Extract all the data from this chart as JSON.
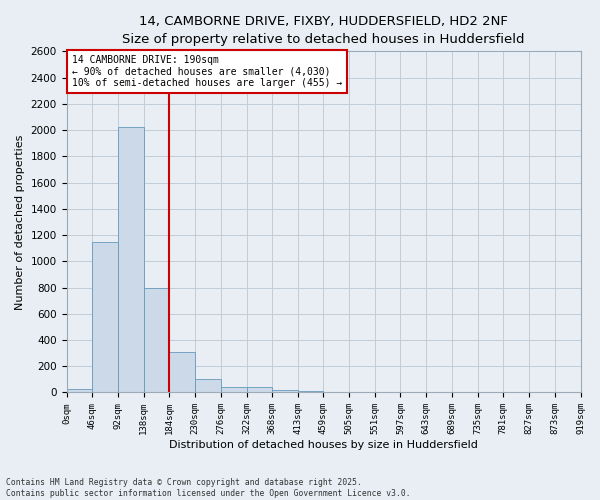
{
  "title_line1": "14, CAMBORNE DRIVE, FIXBY, HUDDERSFIELD, HD2 2NF",
  "title_line2": "Size of property relative to detached houses in Huddersfield",
  "xlabel": "Distribution of detached houses by size in Huddersfield",
  "ylabel": "Number of detached properties",
  "bar_color": "#ccd9e8",
  "bar_edgecolor": "#6699bb",
  "annotation_text": "14 CAMBORNE DRIVE: 190sqm\n← 90% of detached houses are smaller (4,030)\n10% of semi-detached houses are larger (455) →",
  "vline_x": 184,
  "vline_color": "#cc0000",
  "annotation_box_edgecolor": "#cc0000",
  "footnote": "Contains HM Land Registry data © Crown copyright and database right 2025.\nContains public sector information licensed under the Open Government Licence v3.0.",
  "bin_edges": [
    0,
    46,
    92,
    138,
    184,
    230,
    276,
    322,
    368,
    413,
    459,
    505,
    551,
    597,
    643,
    689,
    735,
    781,
    827,
    873,
    919
  ],
  "bin_labels": [
    "0sqm",
    "46sqm",
    "92sqm",
    "138sqm",
    "184sqm",
    "230sqm",
    "276sqm",
    "322sqm",
    "368sqm",
    "413sqm",
    "459sqm",
    "505sqm",
    "551sqm",
    "597sqm",
    "643sqm",
    "689sqm",
    "735sqm",
    "781sqm",
    "827sqm",
    "873sqm",
    "919sqm"
  ],
  "bar_heights": [
    30,
    1150,
    2020,
    795,
    305,
    105,
    45,
    40,
    20,
    10,
    5,
    0,
    0,
    0,
    0,
    0,
    0,
    0,
    0,
    0
  ],
  "ylim": [
    0,
    2600
  ],
  "yticks": [
    0,
    200,
    400,
    600,
    800,
    1000,
    1200,
    1400,
    1600,
    1800,
    2000,
    2200,
    2400,
    2600
  ],
  "grid_color": "#c0ccd8",
  "fig_background_color": "#e8eef4",
  "ax_background_color": "#e8eef4",
  "title_fontsize": 9.5,
  "subtitle_fontsize": 8.5,
  "ylabel_fontsize": 8,
  "xlabel_fontsize": 8,
  "ytick_fontsize": 7.5,
  "xtick_fontsize": 6.5,
  "footnote_fontsize": 5.8
}
